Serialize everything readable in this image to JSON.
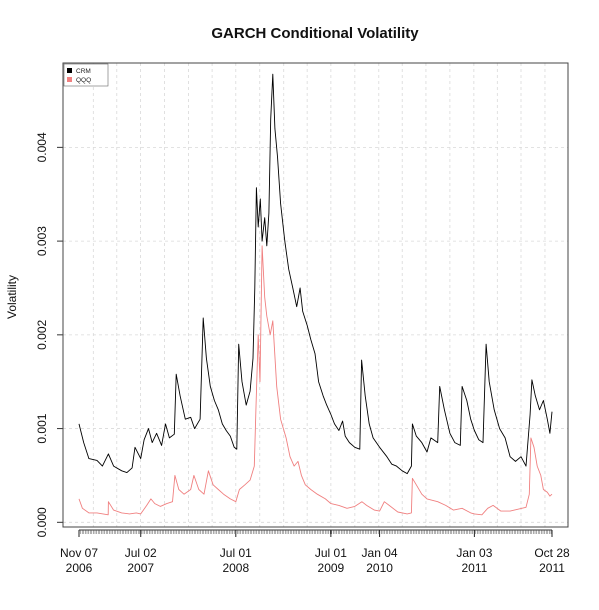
{
  "chart_data": {
    "type": "line",
    "title": "GARCH Conditional Volatility",
    "xlabel": "",
    "ylabel": "Volatility",
    "xlim": [
      "2006-11-07",
      "2011-10-28"
    ],
    "ylim": [
      -5e-05,
      0.0049
    ],
    "y_ticks": [
      {
        "value": 0.0,
        "label": "0.000"
      },
      {
        "value": 0.001,
        "label": "0.001"
      },
      {
        "value": 0.002,
        "label": "0.002"
      },
      {
        "value": 0.003,
        "label": "0.003"
      },
      {
        "value": 0.004,
        "label": "0.004"
      }
    ],
    "x_ticks": [
      {
        "date": "2006-11-07",
        "line1": "Nov 07",
        "line2": "2006"
      },
      {
        "date": "2007-07-02",
        "line1": "Jul 02",
        "line2": "2007"
      },
      {
        "date": "2008-07-01",
        "line1": "Jul 01",
        "line2": "2008"
      },
      {
        "date": "2009-07-01",
        "line1": "Jul 01",
        "line2": "2009"
      },
      {
        "date": "2010-01-04",
        "line1": "Jan 04",
        "line2": "2010"
      },
      {
        "date": "2011-01-03",
        "line1": "Jan 03",
        "line2": "2011"
      },
      {
        "date": "2011-10-28",
        "line1": "Oct 28",
        "line2": "2011"
      }
    ],
    "grid": true,
    "legend_position": "top-left",
    "series": [
      {
        "name": "CRM",
        "color": "#000000",
        "points": [
          [
            "2006-11-07",
            0.00105
          ],
          [
            "2006-11-25",
            0.00085
          ],
          [
            "2006-12-15",
            0.00068
          ],
          [
            "2007-01-15",
            0.00066
          ],
          [
            "2007-02-05",
            0.0006
          ],
          [
            "2007-02-28",
            0.00073
          ],
          [
            "2007-03-20",
            0.0006
          ],
          [
            "2007-04-20",
            0.00055
          ],
          [
            "2007-05-10",
            0.00053
          ],
          [
            "2007-05-30",
            0.00058
          ],
          [
            "2007-06-10",
            0.0008
          ],
          [
            "2007-07-02",
            0.00068
          ],
          [
            "2007-07-15",
            0.00088
          ],
          [
            "2007-08-01",
            0.001
          ],
          [
            "2007-08-15",
            0.00085
          ],
          [
            "2007-09-01",
            0.00095
          ],
          [
            "2007-09-20",
            0.00082
          ],
          [
            "2007-10-05",
            0.00105
          ],
          [
            "2007-10-20",
            0.0009
          ],
          [
            "2007-11-08",
            0.00094
          ],
          [
            "2007-11-15",
            0.00158
          ],
          [
            "2007-11-30",
            0.00135
          ],
          [
            "2007-12-20",
            0.0011
          ],
          [
            "2008-01-10",
            0.00112
          ],
          [
            "2008-01-25",
            0.001
          ],
          [
            "2008-02-15",
            0.0011
          ],
          [
            "2008-02-27",
            0.00218
          ],
          [
            "2008-03-10",
            0.00175
          ],
          [
            "2008-03-25",
            0.00145
          ],
          [
            "2008-04-10",
            0.0013
          ],
          [
            "2008-04-25",
            0.0012
          ],
          [
            "2008-05-10",
            0.00105
          ],
          [
            "2008-05-25",
            0.00098
          ],
          [
            "2008-06-10",
            0.00092
          ],
          [
            "2008-06-25",
            0.0008
          ],
          [
            "2008-07-05",
            0.00078
          ],
          [
            "2008-07-12",
            0.0019
          ],
          [
            "2008-07-25",
            0.0015
          ],
          [
            "2008-08-10",
            0.00125
          ],
          [
            "2008-08-25",
            0.0014
          ],
          [
            "2008-09-05",
            0.00175
          ],
          [
            "2008-09-12",
            0.0025
          ],
          [
            "2008-09-18",
            0.00357
          ],
          [
            "2008-09-25",
            0.00315
          ],
          [
            "2008-10-03",
            0.00345
          ],
          [
            "2008-10-10",
            0.003
          ],
          [
            "2008-10-20",
            0.00325
          ],
          [
            "2008-10-28",
            0.00295
          ],
          [
            "2008-11-05",
            0.0033
          ],
          [
            "2008-11-12",
            0.0043
          ],
          [
            "2008-11-20",
            0.00478
          ],
          [
            "2008-11-28",
            0.0042
          ],
          [
            "2008-12-08",
            0.0039
          ],
          [
            "2008-12-20",
            0.0034
          ],
          [
            "2009-01-05",
            0.003
          ],
          [
            "2009-01-20",
            0.0027
          ],
          [
            "2009-02-05",
            0.0025
          ],
          [
            "2009-02-20",
            0.0023
          ],
          [
            "2009-03-05",
            0.0025
          ],
          [
            "2009-03-15",
            0.00225
          ],
          [
            "2009-04-01",
            0.0021
          ],
          [
            "2009-04-15",
            0.00195
          ],
          [
            "2009-05-01",
            0.0018
          ],
          [
            "2009-05-15",
            0.0015
          ],
          [
            "2009-06-01",
            0.00135
          ],
          [
            "2009-06-15",
            0.00125
          ],
          [
            "2009-07-01",
            0.00115
          ],
          [
            "2009-07-15",
            0.00105
          ],
          [
            "2009-08-01",
            0.00098
          ],
          [
            "2009-08-15",
            0.00108
          ],
          [
            "2009-08-25",
            0.00092
          ],
          [
            "2009-09-10",
            0.00085
          ],
          [
            "2009-10-01",
            0.0008
          ],
          [
            "2009-10-20",
            0.00078
          ],
          [
            "2009-10-27",
            0.00173
          ],
          [
            "2009-11-10",
            0.00135
          ],
          [
            "2009-11-25",
            0.00105
          ],
          [
            "2009-12-10",
            0.0009
          ],
          [
            "2010-01-04",
            0.0008
          ],
          [
            "2010-02-01",
            0.0007
          ],
          [
            "2010-02-20",
            0.00062
          ],
          [
            "2010-03-10",
            0.0006
          ],
          [
            "2010-04-01",
            0.00055
          ],
          [
            "2010-04-20",
            0.00052
          ],
          [
            "2010-05-06",
            0.0006
          ],
          [
            "2010-05-10",
            0.00105
          ],
          [
            "2010-05-25",
            0.00092
          ],
          [
            "2010-06-15",
            0.00085
          ],
          [
            "2010-07-05",
            0.00075
          ],
          [
            "2010-07-20",
            0.0009
          ],
          [
            "2010-08-15",
            0.00085
          ],
          [
            "2010-08-23",
            0.00145
          ],
          [
            "2010-09-10",
            0.0012
          ],
          [
            "2010-10-01",
            0.00095
          ],
          [
            "2010-10-20",
            0.00085
          ],
          [
            "2010-11-10",
            0.00082
          ],
          [
            "2010-11-17",
            0.00145
          ],
          [
            "2010-12-05",
            0.0013
          ],
          [
            "2010-12-20",
            0.0011
          ],
          [
            "2011-01-03",
            0.00098
          ],
          [
            "2011-01-20",
            0.00088
          ],
          [
            "2011-02-05",
            0.00085
          ],
          [
            "2011-02-17",
            0.0019
          ],
          [
            "2011-03-01",
            0.0015
          ],
          [
            "2011-03-20",
            0.0012
          ],
          [
            "2011-04-10",
            0.001
          ],
          [
            "2011-05-01",
            0.0009
          ],
          [
            "2011-05-20",
            0.0007
          ],
          [
            "2011-06-10",
            0.00065
          ],
          [
            "2011-07-01",
            0.0007
          ],
          [
            "2011-07-20",
            0.0006
          ],
          [
            "2011-08-05",
            0.00115
          ],
          [
            "2011-08-12",
            0.00152
          ],
          [
            "2011-08-25",
            0.00135
          ],
          [
            "2011-09-10",
            0.0012
          ],
          [
            "2011-09-25",
            0.0013
          ],
          [
            "2011-10-10",
            0.0011
          ],
          [
            "2011-10-20",
            0.00095
          ],
          [
            "2011-10-28",
            0.00118
          ]
        ]
      },
      {
        "name": "QQQ",
        "color": "#f08080",
        "points": [
          [
            "2006-11-07",
            0.00025
          ],
          [
            "2006-11-20",
            0.00015
          ],
          [
            "2006-12-15",
            0.0001
          ],
          [
            "2007-01-15",
            0.0001
          ],
          [
            "2007-02-27",
            8e-05
          ],
          [
            "2007-02-28",
            0.00022
          ],
          [
            "2007-03-20",
            0.00013
          ],
          [
            "2007-04-20",
            0.0001
          ],
          [
            "2007-05-20",
            9e-05
          ],
          [
            "2007-06-15",
            0.0001
          ],
          [
            "2007-07-02",
            9e-05
          ],
          [
            "2007-07-25",
            0.00018
          ],
          [
            "2007-08-10",
            0.00025
          ],
          [
            "2007-08-25",
            0.0002
          ],
          [
            "2007-09-15",
            0.00017
          ],
          [
            "2007-10-10",
            0.0002
          ],
          [
            "2007-11-01",
            0.00022
          ],
          [
            "2007-11-10",
            0.0005
          ],
          [
            "2007-11-25",
            0.00035
          ],
          [
            "2007-12-15",
            0.0003
          ],
          [
            "2008-01-10",
            0.00035
          ],
          [
            "2008-01-22",
            0.0005
          ],
          [
            "2008-02-10",
            0.00035
          ],
          [
            "2008-03-01",
            0.0003
          ],
          [
            "2008-03-18",
            0.00055
          ],
          [
            "2008-04-05",
            0.0004
          ],
          [
            "2008-04-25",
            0.00035
          ],
          [
            "2008-05-15",
            0.0003
          ],
          [
            "2008-06-10",
            0.00025
          ],
          [
            "2008-07-01",
            0.00022
          ],
          [
            "2008-07-15",
            0.00035
          ],
          [
            "2008-08-05",
            0.0004
          ],
          [
            "2008-08-25",
            0.00045
          ],
          [
            "2008-09-10",
            0.0006
          ],
          [
            "2008-09-16",
            0.0012
          ],
          [
            "2008-09-25",
            0.002
          ],
          [
            "2008-10-02",
            0.0015
          ],
          [
            "2008-10-10",
            0.00295
          ],
          [
            "2008-10-20",
            0.0024
          ],
          [
            "2008-10-28",
            0.0022
          ],
          [
            "2008-11-10",
            0.002
          ],
          [
            "2008-11-20",
            0.00215
          ],
          [
            "2008-12-05",
            0.00145
          ],
          [
            "2008-12-20",
            0.0011
          ],
          [
            "2009-01-10",
            0.0009
          ],
          [
            "2009-01-25",
            0.0007
          ],
          [
            "2009-02-10",
            0.0006
          ],
          [
            "2009-02-25",
            0.00065
          ],
          [
            "2009-03-10",
            0.0005
          ],
          [
            "2009-03-25",
            0.0004
          ],
          [
            "2009-04-15",
            0.00035
          ],
          [
            "2009-05-10",
            0.0003
          ],
          [
            "2009-06-10",
            0.00025
          ],
          [
            "2009-07-01",
            0.0002
          ],
          [
            "2009-08-01",
            0.00018
          ],
          [
            "2009-09-01",
            0.00015
          ],
          [
            "2009-10-01",
            0.00017
          ],
          [
            "2009-10-28",
            0.00022
          ],
          [
            "2009-11-15",
            0.00018
          ],
          [
            "2009-12-15",
            0.00013
          ],
          [
            "2010-01-04",
            0.00012
          ],
          [
            "2010-01-22",
            0.00022
          ],
          [
            "2010-02-10",
            0.00018
          ],
          [
            "2010-03-15",
            0.00011
          ],
          [
            "2010-04-20",
            9e-05
          ],
          [
            "2010-05-06",
            0.0001
          ],
          [
            "2010-05-10",
            0.00047
          ],
          [
            "2010-05-25",
            0.0004
          ],
          [
            "2010-06-15",
            0.0003
          ],
          [
            "2010-07-05",
            0.00025
          ],
          [
            "2010-08-15",
            0.00022
          ],
          [
            "2010-09-15",
            0.00018
          ],
          [
            "2010-10-15",
            0.00013
          ],
          [
            "2010-11-17",
            0.00015
          ],
          [
            "2010-12-20",
            0.0001
          ],
          [
            "2011-01-03",
            9e-05
          ],
          [
            "2011-02-01",
            8e-05
          ],
          [
            "2011-02-23",
            0.00015
          ],
          [
            "2011-03-16",
            0.00018
          ],
          [
            "2011-04-15",
            0.00012
          ],
          [
            "2011-05-20",
            0.00012
          ],
          [
            "2011-06-20",
            0.00014
          ],
          [
            "2011-07-20",
            0.00016
          ],
          [
            "2011-08-02",
            0.0003
          ],
          [
            "2011-08-08",
            0.0009
          ],
          [
            "2011-08-20",
            0.0008
          ],
          [
            "2011-09-01",
            0.0006
          ],
          [
            "2011-09-15",
            0.0005
          ],
          [
            "2011-09-25",
            0.00035
          ],
          [
            "2011-10-10",
            0.00032
          ],
          [
            "2011-10-20",
            0.00028
          ],
          [
            "2011-10-28",
            0.0003
          ]
        ]
      }
    ]
  }
}
